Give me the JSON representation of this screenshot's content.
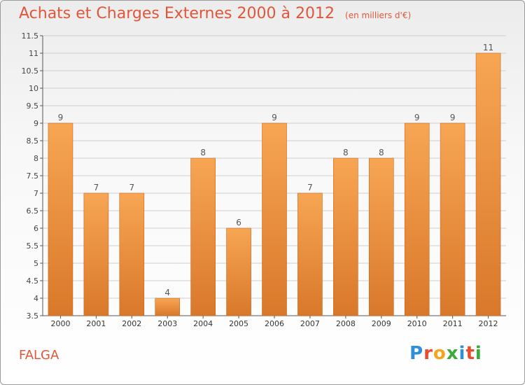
{
  "header": {
    "title": "Achats et Charges Externes 2000 à 2012",
    "unit": "(en milliers d'€)"
  },
  "footer": {
    "city": "FALGA",
    "logo_letters": [
      "P",
      "r",
      "o",
      "x",
      "i",
      "t",
      "i"
    ],
    "logo_colors": [
      "#2f8fd8",
      "#e94b2d",
      "#f4a51c",
      "#3aab3a",
      "#2f8fd8",
      "#e94b2d",
      "#3aab3a"
    ]
  },
  "colors": {
    "bar_light": "#f7a653",
    "bar_dark": "#d9782a",
    "title": "#e0563b",
    "grid": "#cfcfcf"
  },
  "chart_data": {
    "type": "bar",
    "title": "Achats et Charges Externes 2000 à 2012",
    "subtitle": "(en milliers d'€)",
    "categories": [
      "2000",
      "2001",
      "2002",
      "2003",
      "2004",
      "2005",
      "2006",
      "2007",
      "2008",
      "2009",
      "2010",
      "2011",
      "2012"
    ],
    "values": [
      9,
      7,
      7,
      4,
      8,
      6,
      9,
      7,
      8,
      8,
      9,
      9,
      11
    ],
    "ylim": [
      3.5,
      11.5
    ],
    "yticks": [
      "3.5",
      "4",
      "4.5",
      "5",
      "5.5",
      "6",
      "6.5",
      "7",
      "7.5",
      "8",
      "8.5",
      "9",
      "9.5",
      "10",
      "10.5",
      "11",
      "11.5"
    ],
    "grid": true,
    "data_labels": true
  }
}
